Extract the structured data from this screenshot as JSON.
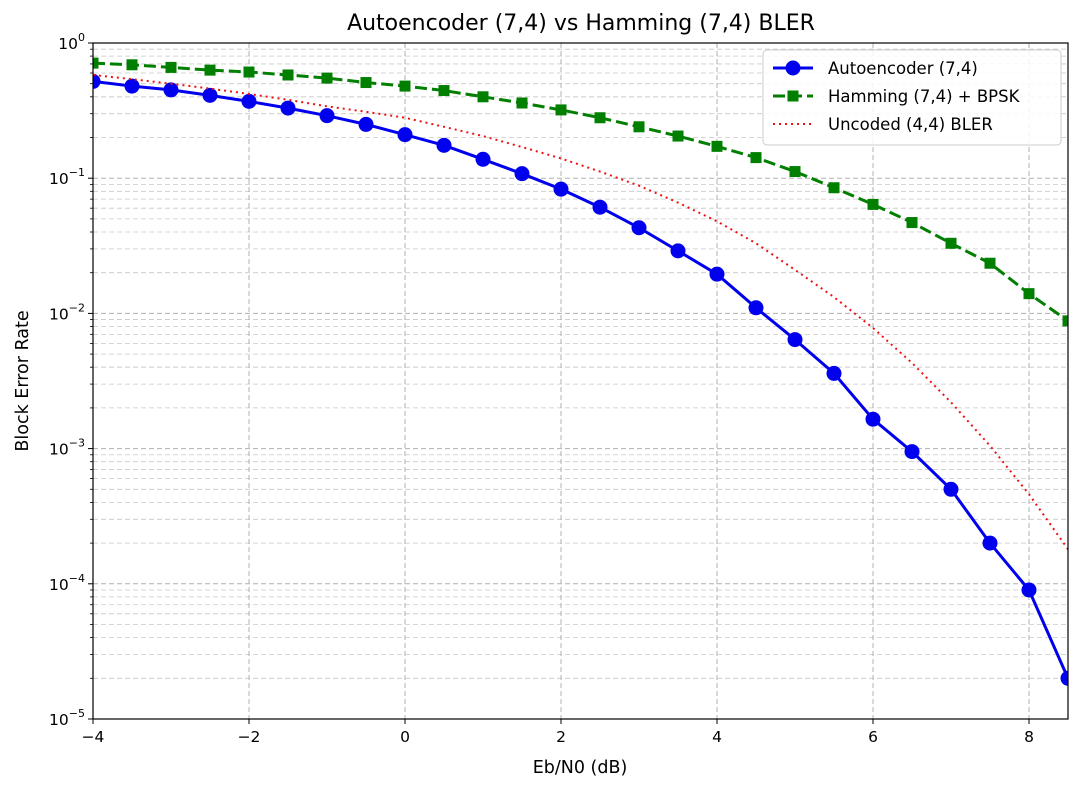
{
  "chart_data": {
    "type": "line",
    "title": "Autoencoder (7,4) vs Hamming (7,4) BLER",
    "xlabel": "Eb/N0 (dB)",
    "ylabel": "Block Error Rate",
    "xlim": [
      -4,
      8.5
    ],
    "ylim": [
      1e-05,
      1
    ],
    "yscale": "log",
    "grid": true,
    "legend_position": "top-right",
    "x_ticks": [
      {
        "value": -4,
        "label": "−4"
      },
      {
        "value": -2,
        "label": "−2"
      },
      {
        "value": 0,
        "label": "0"
      },
      {
        "value": 2,
        "label": "2"
      },
      {
        "value": 4,
        "label": "4"
      },
      {
        "value": 6,
        "label": "6"
      },
      {
        "value": 8,
        "label": "8"
      }
    ],
    "y_ticks": [
      {
        "exp": 0,
        "base": "10",
        "sup": "0"
      },
      {
        "exp": -1,
        "base": "10",
        "sup": "−1"
      },
      {
        "exp": -2,
        "base": "10",
        "sup": "−2"
      },
      {
        "exp": -3,
        "base": "10",
        "sup": "−3"
      },
      {
        "exp": -4,
        "base": "10",
        "sup": "−4"
      },
      {
        "exp": -5,
        "base": "10",
        "sup": "−5"
      }
    ],
    "series": [
      {
        "name": "Autoencoder (7,4)",
        "color": "#0000ee",
        "style": "solid",
        "marker": "circle",
        "x": [
          -4,
          -3.5,
          -3,
          -2.5,
          -2,
          -1.5,
          -1,
          -0.5,
          0,
          0.5,
          1,
          1.5,
          2,
          2.5,
          3,
          3.5,
          4,
          4.5,
          5,
          5.5,
          6,
          6.5,
          7,
          7.5,
          8,
          8.5
        ],
        "y": [
          0.52,
          0.48,
          0.45,
          0.41,
          0.37,
          0.33,
          0.29,
          0.25,
          0.21,
          0.175,
          0.138,
          0.108,
          0.083,
          0.061,
          0.043,
          0.029,
          0.0195,
          0.011,
          0.0064,
          0.0036,
          0.00165,
          0.00095,
          0.0005,
          0.0002,
          9e-05,
          2e-05
        ]
      },
      {
        "name": "Hamming (7,4) + BPSK",
        "color": "#007f00",
        "style": "dashed",
        "marker": "square",
        "x": [
          -4,
          -3.5,
          -3,
          -2.5,
          -2,
          -1.5,
          -1,
          -0.5,
          0,
          0.5,
          1,
          1.5,
          2,
          2.5,
          3,
          3.5,
          4,
          4.5,
          5,
          5.5,
          6,
          6.5,
          7,
          7.5,
          8,
          8.5
        ],
        "y": [
          0.71,
          0.69,
          0.66,
          0.63,
          0.61,
          0.58,
          0.55,
          0.51,
          0.48,
          0.445,
          0.4,
          0.36,
          0.32,
          0.28,
          0.24,
          0.205,
          0.172,
          0.142,
          0.112,
          0.085,
          0.064,
          0.047,
          0.033,
          0.0235,
          0.014,
          0.0088
        ]
      },
      {
        "name": "Uncoded (4,4) BLER",
        "color": "#ee1111",
        "style": "dotted",
        "marker": "none",
        "x": [
          -4,
          -3.5,
          -3,
          -2.5,
          -2,
          -1.5,
          -1,
          -0.5,
          0,
          0.5,
          1,
          1.5,
          2,
          2.5,
          3,
          3.5,
          4,
          4.5,
          5,
          5.5,
          6,
          6.5,
          7,
          7.5,
          8,
          8.5
        ],
        "y": [
          0.58,
          0.54,
          0.5,
          0.46,
          0.42,
          0.38,
          0.34,
          0.31,
          0.28,
          0.24,
          0.205,
          0.17,
          0.14,
          0.112,
          0.088,
          0.066,
          0.048,
          0.033,
          0.021,
          0.0132,
          0.0078,
          0.0043,
          0.0022,
          0.00105,
          0.00046,
          0.00018
        ]
      }
    ]
  }
}
